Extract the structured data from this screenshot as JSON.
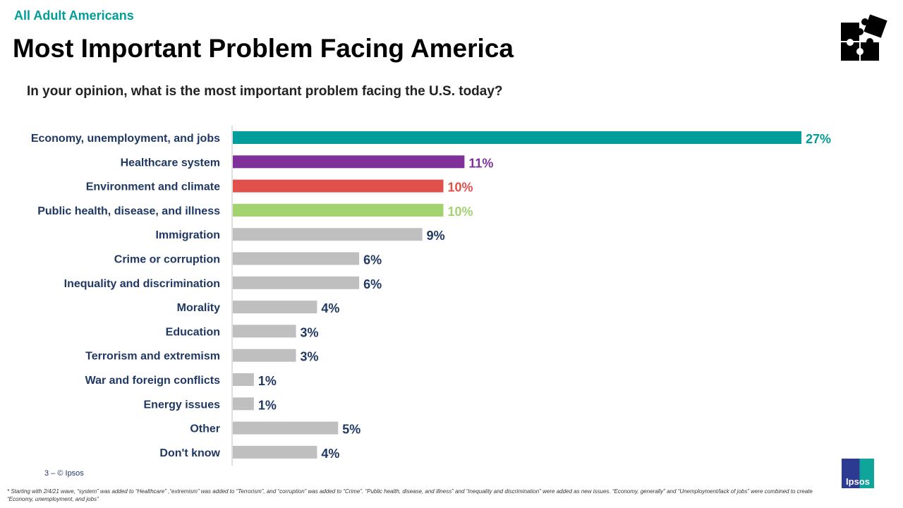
{
  "header": {
    "kicker": "All Adult Americans",
    "title": "Most Important Problem Facing America",
    "question": "In your opinion, what is the most important problem facing the U.S. today?"
  },
  "chart_data": {
    "type": "bar",
    "orientation": "horizontal",
    "xlim": [
      0,
      27
    ],
    "grid": false,
    "categories": [
      "Economy, unemployment, and jobs",
      "Healthcare system",
      "Environment and climate",
      "Public health, disease, and illness",
      "Immigration",
      "Crime or corruption",
      "Inequality and discrimination",
      "Morality",
      "Education",
      "Terrorism and extremism",
      "War and foreign conflicts",
      "Energy issues",
      "Other",
      "Don't know"
    ],
    "values": [
      27,
      11,
      10,
      10,
      9,
      6,
      6,
      4,
      3,
      3,
      1,
      1,
      5,
      4
    ],
    "data_labels": [
      "27%",
      "11%",
      "10%",
      "10%",
      "9%",
      "6%",
      "6%",
      "4%",
      "3%",
      "3%",
      "1%",
      "1%",
      "5%",
      "4%"
    ],
    "colors": [
      "#009d9a",
      "#7f3199",
      "#e2504b",
      "#a3d36f",
      "#bfbfbf",
      "#bfbfbf",
      "#bfbfbf",
      "#bfbfbf",
      "#bfbfbf",
      "#bfbfbf",
      "#bfbfbf",
      "#bfbfbf",
      "#bfbfbf",
      "#bfbfbf"
    ],
    "label_colors": [
      "#009d9a",
      "#7f3199",
      "#e2504b",
      "#a3d36f",
      "#1f3864",
      "#1f3864",
      "#1f3864",
      "#1f3864",
      "#1f3864",
      "#1f3864",
      "#1f3864",
      "#1f3864",
      "#1f3864",
      "#1f3864"
    ]
  },
  "footer": {
    "page": "3 –  © Ipsos",
    "note": "* Starting with 2/4/21 wave, “system” was added to “Healthcare” ,“extremism” was added to “Terrorism”, and “corruption” was added to “Crime”. “Public health, disease, and illness” and “Inequality and discrimination” were added as new issues. “Economy, generally” and “Unemployment/lack of jobs” were combined to create “Economy, unemployment, and jobs”",
    "logo": "Ipsos"
  },
  "icons": {
    "top_right": "puzzle-icon"
  }
}
